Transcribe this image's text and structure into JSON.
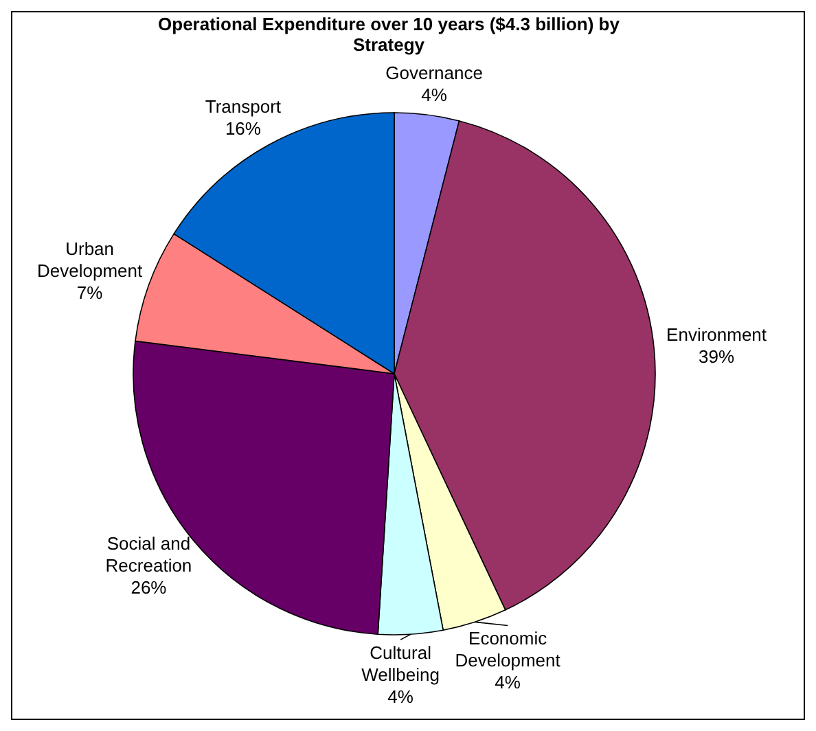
{
  "chart_data": {
    "type": "pie",
    "title": "Operational Expenditure over 10 years ($4.3 billion) by Strategy",
    "categories": [
      "Governance",
      "Environment",
      "Economic Development",
      "Cultural Wellbeing",
      "Social and Recreation",
      "Urban Development",
      "Transport"
    ],
    "values": [
      4,
      39,
      4,
      4,
      26,
      7,
      16
    ],
    "value_labels": [
      "4%",
      "39%",
      "4%",
      "4%",
      "26%",
      "7%",
      "16%"
    ],
    "colors": [
      "#9999ff",
      "#993366",
      "#ffffcc",
      "#ccffff",
      "#660066",
      "#ff8080",
      "#0066cc"
    ]
  }
}
